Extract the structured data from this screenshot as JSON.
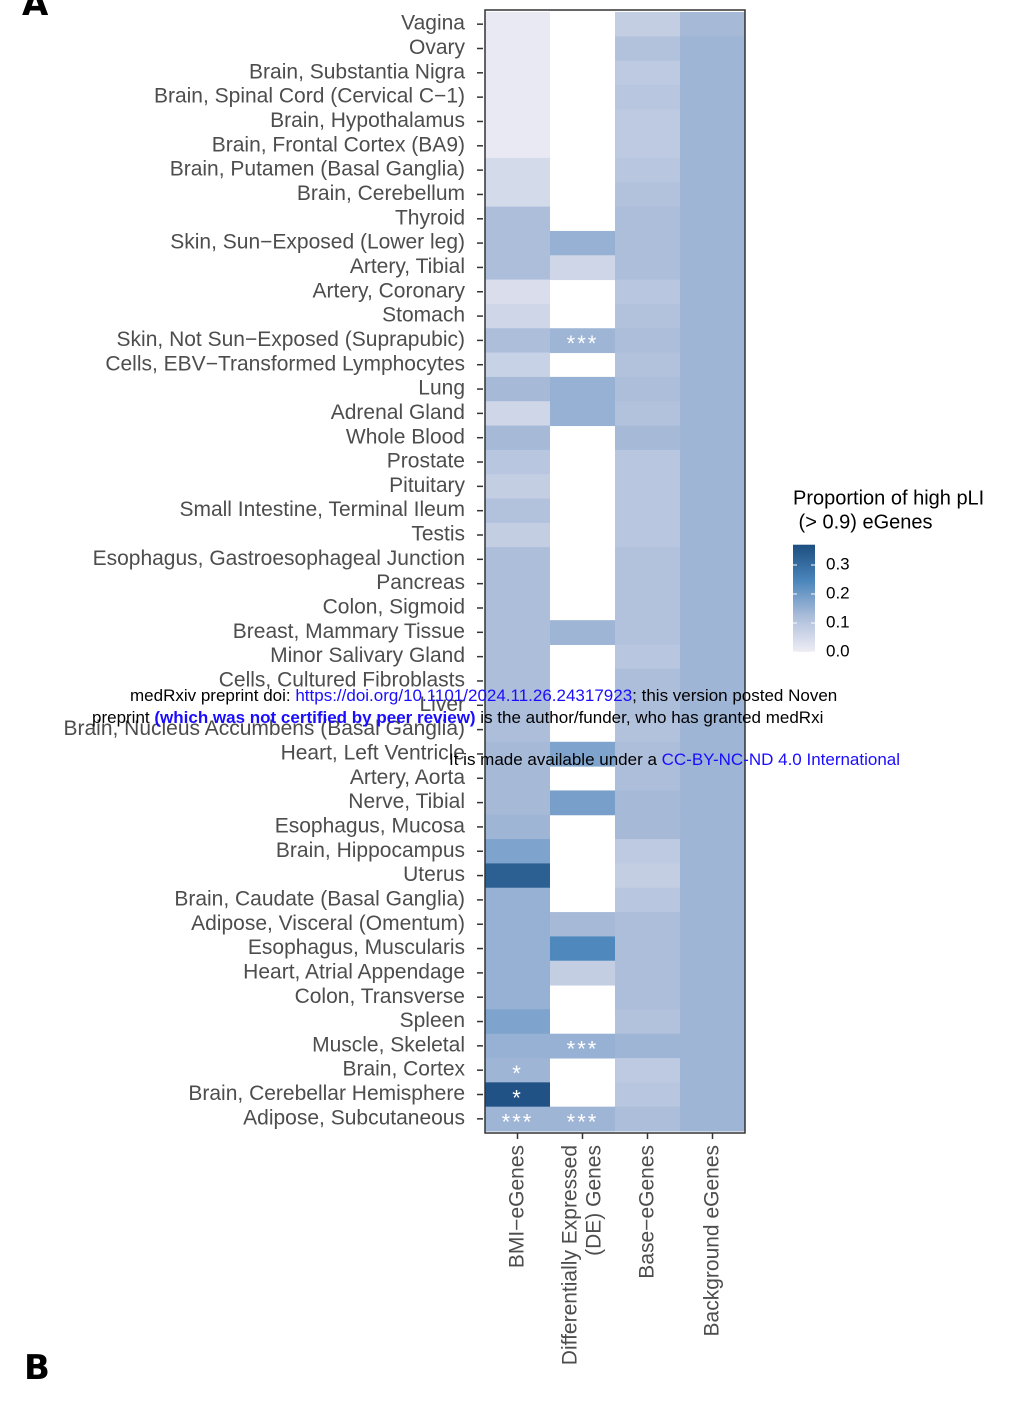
{
  "panel_labels": [
    "A",
    "B"
  ],
  "watermark": {
    "line1": {
      "prefix": "medRxiv preprint doi: ",
      "link": "https://doi.org/10.1101/2024.11.26.24317923",
      "suffix": "; this version posted Noven"
    },
    "line2": {
      "prefix": "preprint ",
      "emphasis": "(which was not certified by peer review)",
      "suffix": " is the author/funder, who has granted medRxi"
    },
    "line3": {
      "prefix": "It is made available under a ",
      "link": "CC-BY-NC-ND 4.0 International"
    }
  },
  "chart_data": {
    "type": "heatmap",
    "rows": [
      "Vagina",
      "Ovary",
      "Brain, Substantia Nigra",
      "Brain, Spinal Cord (Cervical C−1)",
      "Brain, Hypothalamus",
      "Brain, Frontal Cortex (BA9)",
      "Brain, Putamen (Basal Ganglia)",
      "Brain, Cerebellum",
      "Thyroid",
      "Skin, Sun−Exposed (Lower leg)",
      "Artery, Tibial",
      "Artery, Coronary",
      "Stomach",
      "Skin, Not Sun−Exposed (Suprapubic)",
      "Cells, EBV−Transformed Lymphocytes",
      "Lung",
      "Adrenal Gland",
      "Whole Blood",
      "Prostate",
      "Pituitary",
      "Small Intestine, Terminal Ileum",
      "Testis",
      "Esophagus, Gastroesophageal Junction",
      "Pancreas",
      "Colon, Sigmoid",
      "Breast, Mammary Tissue",
      "Minor Salivary Gland",
      "Cells, Cultured Fibroblasts",
      "Liver",
      "Brain, Nucleus Accumbens (Basal Ganglia)",
      "Heart, Left Ventricle",
      "Artery, Aorta",
      "Nerve, Tibial",
      "Esophagus, Mucosa",
      "Brain, Hippocampus",
      "Uterus",
      "Brain, Caudate (Basal Ganglia)",
      "Adipose, Visceral (Omentum)",
      "Esophagus, Muscularis",
      "Heart, Atrial Appendage",
      "Colon, Transverse",
      "Spleen",
      "Muscle, Skeletal",
      "Brain, Cortex",
      "Brain, Cerebellar Hemisphere",
      "Adipose, Subcutaneous"
    ],
    "columns": [
      "BMI−eGenes",
      "Differentially Expressed\n(DE) Genes",
      "Base−eGenes",
      "Background eGenes"
    ],
    "values": [
      [
        0.01,
        null,
        0.08,
        0.13
      ],
      [
        0.01,
        null,
        0.11,
        0.14
      ],
      [
        0.01,
        null,
        0.09,
        0.14
      ],
      [
        0.01,
        null,
        0.1,
        0.14
      ],
      [
        0.01,
        null,
        0.09,
        0.14
      ],
      [
        0.01,
        null,
        0.09,
        0.14
      ],
      [
        0.05,
        null,
        0.1,
        0.14
      ],
      [
        0.05,
        null,
        0.11,
        0.14
      ],
      [
        0.12,
        null,
        0.12,
        0.14
      ],
      [
        0.12,
        0.15,
        0.12,
        0.14
      ],
      [
        0.12,
        0.06,
        0.12,
        0.14
      ],
      [
        0.04,
        null,
        0.1,
        0.14
      ],
      [
        0.06,
        null,
        0.11,
        0.14
      ],
      [
        0.12,
        0.14,
        0.12,
        0.14
      ],
      [
        0.07,
        null,
        0.11,
        0.14
      ],
      [
        0.13,
        0.15,
        0.12,
        0.14
      ],
      [
        0.06,
        0.15,
        0.11,
        0.14
      ],
      [
        0.13,
        null,
        0.13,
        0.14
      ],
      [
        0.1,
        null,
        0.1,
        0.14
      ],
      [
        0.08,
        null,
        0.1,
        0.14
      ],
      [
        0.11,
        null,
        0.1,
        0.14
      ],
      [
        0.08,
        null,
        0.1,
        0.14
      ],
      [
        0.12,
        null,
        0.11,
        0.14
      ],
      [
        0.12,
        null,
        0.11,
        0.14
      ],
      [
        0.12,
        null,
        0.11,
        0.14
      ],
      [
        0.12,
        0.14,
        0.11,
        0.14
      ],
      [
        0.12,
        null,
        0.1,
        0.14
      ],
      [
        0.12,
        null,
        0.12,
        0.14
      ],
      [
        0.12,
        null,
        0.12,
        0.14
      ],
      [
        0.12,
        null,
        0.11,
        0.14
      ],
      [
        0.13,
        0.18,
        0.12,
        0.14
      ],
      [
        0.13,
        null,
        0.12,
        0.14
      ],
      [
        0.13,
        0.19,
        0.13,
        0.14
      ],
      [
        0.14,
        null,
        0.13,
        0.14
      ],
      [
        0.18,
        null,
        0.09,
        0.14
      ],
      [
        0.33,
        null,
        0.08,
        0.14
      ],
      [
        0.15,
        null,
        0.1,
        0.14
      ],
      [
        0.15,
        0.13,
        0.12,
        0.14
      ],
      [
        0.15,
        0.24,
        0.12,
        0.14
      ],
      [
        0.15,
        0.08,
        0.12,
        0.14
      ],
      [
        0.15,
        null,
        0.12,
        0.14
      ],
      [
        0.18,
        null,
        0.11,
        0.14
      ],
      [
        0.15,
        0.15,
        0.14,
        0.14
      ],
      [
        0.14,
        null,
        0.09,
        0.14
      ],
      [
        0.36,
        null,
        0.1,
        0.14
      ],
      [
        0.14,
        0.14,
        0.12,
        0.14
      ]
    ],
    "significance": [
      [
        null,
        null,
        null,
        null
      ],
      [
        null,
        null,
        null,
        null
      ],
      [
        null,
        null,
        null,
        null
      ],
      [
        null,
        null,
        null,
        null
      ],
      [
        null,
        null,
        null,
        null
      ],
      [
        null,
        null,
        null,
        null
      ],
      [
        null,
        null,
        null,
        null
      ],
      [
        null,
        null,
        null,
        null
      ],
      [
        null,
        null,
        null,
        null
      ],
      [
        null,
        null,
        null,
        null
      ],
      [
        null,
        null,
        null,
        null
      ],
      [
        null,
        null,
        null,
        null
      ],
      [
        null,
        null,
        null,
        null
      ],
      [
        null,
        "***",
        null,
        null
      ],
      [
        null,
        null,
        null,
        null
      ],
      [
        null,
        null,
        null,
        null
      ],
      [
        null,
        null,
        null,
        null
      ],
      [
        null,
        null,
        null,
        null
      ],
      [
        null,
        null,
        null,
        null
      ],
      [
        null,
        null,
        null,
        null
      ],
      [
        null,
        null,
        null,
        null
      ],
      [
        null,
        null,
        null,
        null
      ],
      [
        null,
        null,
        null,
        null
      ],
      [
        null,
        null,
        null,
        null
      ],
      [
        null,
        null,
        null,
        null
      ],
      [
        null,
        null,
        null,
        null
      ],
      [
        null,
        null,
        null,
        null
      ],
      [
        null,
        null,
        null,
        null
      ],
      [
        null,
        null,
        null,
        null
      ],
      [
        null,
        null,
        null,
        null
      ],
      [
        null,
        null,
        null,
        null
      ],
      [
        null,
        null,
        null,
        null
      ],
      [
        null,
        null,
        null,
        null
      ],
      [
        null,
        null,
        null,
        null
      ],
      [
        null,
        null,
        null,
        null
      ],
      [
        null,
        null,
        null,
        null
      ],
      [
        null,
        null,
        null,
        null
      ],
      [
        null,
        null,
        null,
        null
      ],
      [
        null,
        null,
        null,
        null
      ],
      [
        null,
        null,
        null,
        null
      ],
      [
        null,
        null,
        null,
        null
      ],
      [
        null,
        null,
        null,
        null
      ],
      [
        null,
        "***",
        null,
        null
      ],
      [
        "*",
        null,
        null,
        null
      ],
      [
        "*",
        null,
        null,
        null
      ],
      [
        "***",
        "***",
        null,
        null
      ]
    ],
    "colors": [
      "#efedf5",
      "#abbdda",
      "#4a85bb",
      "#1d4e80"
    ],
    "colorbar": {
      "title": [
        "Proportion of high pLI",
        " (> 0.9) eGenes"
      ],
      "lim": [
        0,
        0.37
      ],
      "ticks": [
        {
          "value": 0,
          "label": "0.0"
        },
        {
          "value": 0.1,
          "label": "0.1"
        },
        {
          "value": 0.2,
          "label": "0.2"
        },
        {
          "value": 0.3,
          "label": "0.3"
        }
      ]
    }
  }
}
